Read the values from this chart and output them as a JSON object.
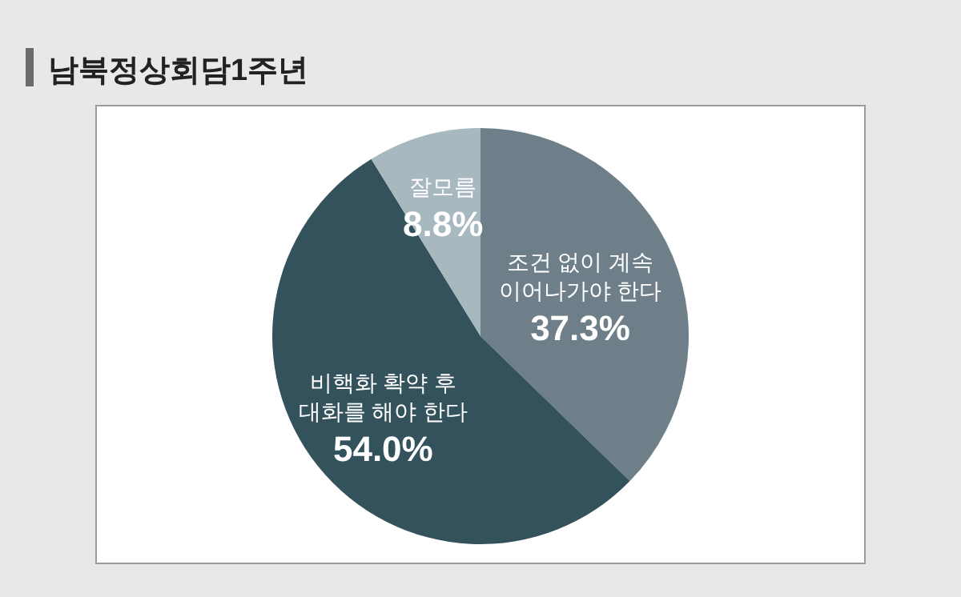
{
  "chart_data": {
    "type": "pie",
    "title": "남북정상회담1주년",
    "categories": [
      "조건 없이 계속 이어나가야 한다",
      "비핵화 확약 후 대화를 해야 한다",
      "잘모름"
    ],
    "values": [
      37.3,
      54.0,
      8.8
    ],
    "colors": [
      "#6e7f89",
      "#34525c",
      "#a8b8bf"
    ],
    "value_labels": [
      "37.3%",
      "54.0%",
      "8.8%"
    ]
  }
}
